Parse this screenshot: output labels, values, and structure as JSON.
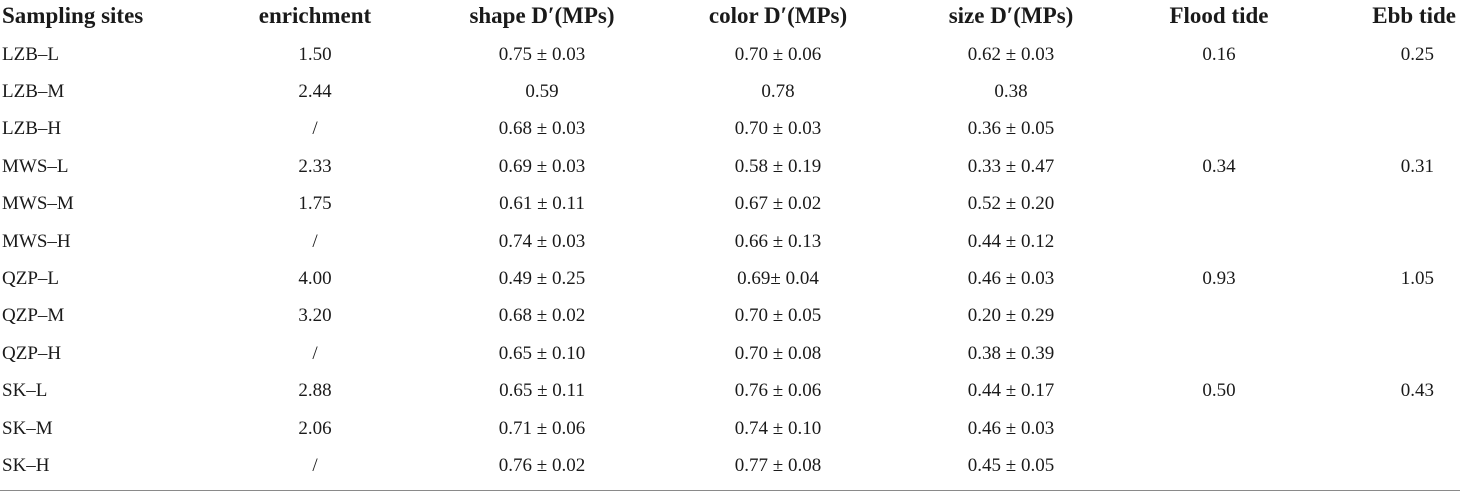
{
  "table": {
    "headers": [
      "Sampling sites",
      "enrichment",
      "shape D′(MPs)",
      "color D′(MPs)",
      "size D′(MPs)",
      "Flood tide",
      "Ebb tide"
    ],
    "rows": [
      [
        "LZB–L",
        "1.50",
        "0.75 ± 0.03",
        "0.70 ± 0.06",
        "0.62 ± 0.03",
        "0.16",
        "0.25"
      ],
      [
        "LZB–M",
        "2.44",
        "0.59",
        "0.78",
        "0.38",
        "",
        ""
      ],
      [
        "LZB–H",
        "/",
        "0.68 ± 0.03",
        "0.70 ± 0.03",
        "0.36 ± 0.05",
        "",
        ""
      ],
      [
        "MWS–L",
        "2.33",
        "0.69 ± 0.03",
        "0.58 ± 0.19",
        "0.33 ± 0.47",
        "0.34",
        "0.31"
      ],
      [
        "MWS–M",
        "1.75",
        "0.61 ± 0.11",
        "0.67 ± 0.02",
        "0.52 ± 0.20",
        "",
        ""
      ],
      [
        "MWS–H",
        "/",
        "0.74 ± 0.03",
        "0.66 ± 0.13",
        "0.44 ± 0.12",
        "",
        ""
      ],
      [
        "QZP–L",
        "4.00",
        "0.49 ± 0.25",
        "0.69± 0.04",
        "0.46 ± 0.03",
        "0.93",
        "1.05"
      ],
      [
        "QZP–M",
        "3.20",
        "0.68 ± 0.02",
        "0.70 ± 0.05",
        "0.20 ± 0.29",
        "",
        ""
      ],
      [
        "QZP–H",
        "/",
        "0.65 ± 0.10",
        "0.70 ± 0.08",
        "0.38 ± 0.39",
        "",
        ""
      ],
      [
        "SK–L",
        "2.88",
        "0.65 ± 0.11",
        "0.76 ± 0.06",
        "0.44 ± 0.17",
        "0.50",
        "0.43"
      ],
      [
        "SK–M",
        "2.06",
        "0.71 ± 0.06",
        "0.74 ± 0.10",
        "0.46 ± 0.03",
        "",
        ""
      ],
      [
        "SK–H",
        "/",
        "0.76 ± 0.02",
        "0.77 ± 0.08",
        "0.45 ± 0.05",
        "",
        ""
      ]
    ]
  }
}
